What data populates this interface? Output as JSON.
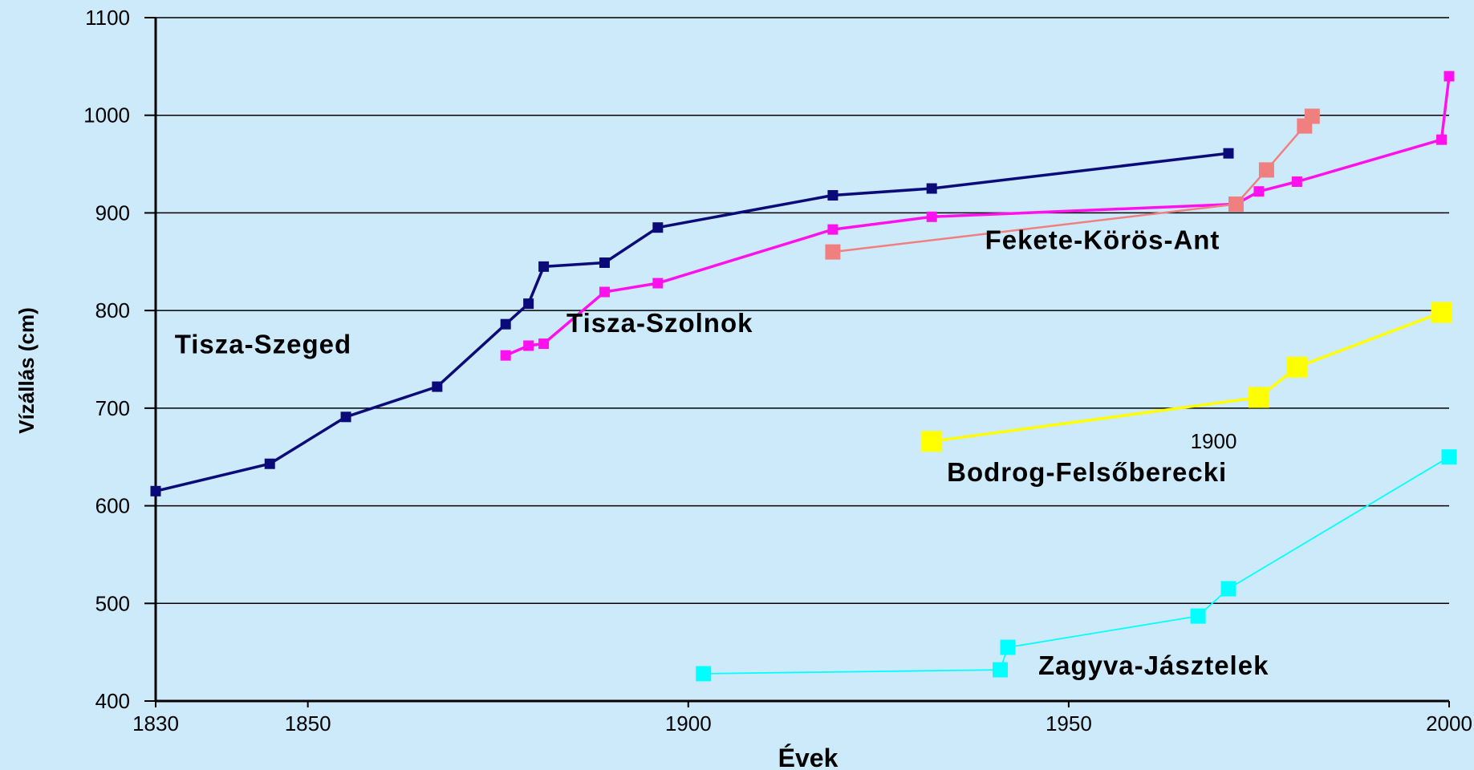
{
  "chart_data": {
    "type": "line",
    "xlabel": "Évek",
    "ylabel": "Vízállás (cm)",
    "xlim": [
      1830,
      2000
    ],
    "ylim": [
      400,
      1100
    ],
    "x_ticks": [
      1830,
      1850,
      1900,
      1950,
      2000
    ],
    "y_ticks": [
      400,
      500,
      600,
      700,
      800,
      900,
      1000,
      1100
    ],
    "grid": "horizontal",
    "series": [
      {
        "name": "Tisza-Szeged",
        "color": "#0a0a78",
        "marker_size": "small",
        "x": [
          1830,
          1845,
          1855,
          1867,
          1876,
          1879,
          1881,
          1889,
          1896,
          1919,
          1932,
          1971
        ],
        "y": [
          615,
          643,
          691,
          722,
          786,
          807,
          845,
          849,
          885,
          918,
          925,
          961
        ]
      },
      {
        "name": "Tisza-Szolnok",
        "color": "#ff11ee",
        "marker_size": "small",
        "x": [
          1876,
          1879,
          1881,
          1889,
          1896,
          1919,
          1932,
          1972,
          1975,
          1980,
          1999,
          2000
        ],
        "y": [
          754,
          764,
          766,
          819,
          828,
          883,
          896,
          909,
          922,
          932,
          975,
          1040
        ]
      },
      {
        "name": "Fekete-Körös-Ant",
        "color": "#f08080",
        "marker_size": "medium",
        "x": [
          1919,
          1972,
          1976,
          1981,
          1982
        ],
        "y": [
          860,
          909,
          944,
          989,
          999
        ]
      },
      {
        "name": "Bodrog-Felsőberecki",
        "color": "#ffff00",
        "marker_size": "large",
        "x": [
          1932,
          1975,
          1980,
          1999
        ],
        "y": [
          666,
          711,
          742,
          798
        ]
      },
      {
        "name": "Zagyva-Jásztelek",
        "color": "#00ffff",
        "marker_size": "medium",
        "x": [
          1902,
          1941,
          1942,
          1967,
          1971,
          2000
        ],
        "y": [
          428,
          432,
          455,
          487,
          515,
          650
        ]
      }
    ],
    "annotations": [
      {
        "text": "Tisza-Szeged",
        "x": 1832.5,
        "y": 756,
        "style": "bold"
      },
      {
        "text": "Tisza-Szolnok",
        "x": 1884,
        "y": 778,
        "style": "bold"
      },
      {
        "text": "Fekete-Körös-Ant",
        "x": 1939,
        "y": 863,
        "style": "bold"
      },
      {
        "text": "Bodrog-Felsőberecki",
        "x": 1934,
        "y": 625,
        "style": "bold"
      },
      {
        "text": "Zagyva-Jásztelek",
        "x": 1946,
        "y": 427,
        "style": "bold"
      },
      {
        "text": "1900",
        "x": 1966,
        "y": 659,
        "style": "plain"
      }
    ]
  }
}
